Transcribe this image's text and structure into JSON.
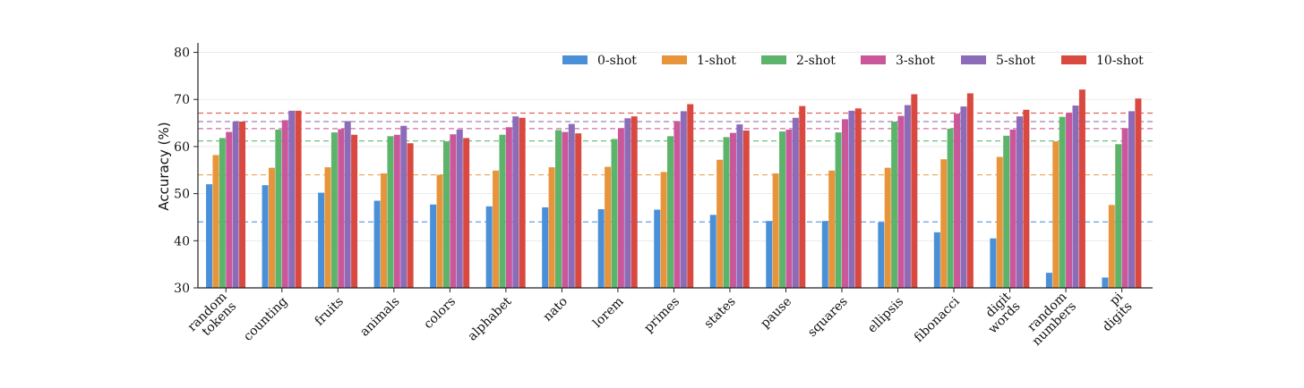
{
  "chart_data": {
    "type": "bar",
    "title": "",
    "xlabel": "",
    "ylabel": "Accuracy (%)",
    "ylim": [
      30,
      82
    ],
    "yticks": [
      30,
      40,
      50,
      60,
      70,
      80
    ],
    "grid": true,
    "legend_position": "top-right",
    "categories": [
      [
        "random",
        "tokens"
      ],
      [
        "counting"
      ],
      [
        "fruits"
      ],
      [
        "animals"
      ],
      [
        "colors"
      ],
      [
        "alphabet"
      ],
      [
        "nato"
      ],
      [
        "lorem"
      ],
      [
        "primes"
      ],
      [
        "states"
      ],
      [
        "pause"
      ],
      [
        "squares"
      ],
      [
        "ellipsis"
      ],
      [
        "fibonacci"
      ],
      [
        "digit",
        "words"
      ],
      [
        "random",
        "numbers"
      ],
      [
        "pi",
        "digits"
      ]
    ],
    "series": [
      {
        "name": "0-shot",
        "color": "#4a90d9",
        "values": [
          52.0,
          51.8,
          50.2,
          48.5,
          47.7,
          47.3,
          47.1,
          46.7,
          46.6,
          45.5,
          44.2,
          44.2,
          43.9,
          41.8,
          40.5,
          33.2,
          32.2
        ],
        "reference": 44.0
      },
      {
        "name": "1-shot",
        "color": "#e8943a",
        "values": [
          58.2,
          55.5,
          55.6,
          54.3,
          54.0,
          54.9,
          55.6,
          55.7,
          54.6,
          57.2,
          54.3,
          54.9,
          55.5,
          57.3,
          57.8,
          61.1,
          47.6
        ],
        "reference": 54.0
      },
      {
        "name": "2-shot",
        "color": "#5cb36a",
        "values": [
          61.8,
          63.6,
          63.0,
          62.2,
          61.1,
          62.5,
          63.5,
          61.6,
          62.2,
          62.0,
          63.2,
          63.0,
          65.3,
          63.8,
          62.3,
          66.3,
          60.5
        ],
        "reference": 61.2
      },
      {
        "name": "3-shot",
        "color": "#c9579a",
        "values": [
          63.1,
          65.6,
          63.7,
          62.5,
          62.6,
          64.1,
          63.1,
          63.9,
          65.4,
          62.9,
          63.6,
          65.8,
          66.5,
          67.0,
          63.6,
          67.1,
          63.9
        ],
        "reference": 63.8
      },
      {
        "name": "5-shot",
        "color": "#8c6bb8",
        "values": [
          65.3,
          67.6,
          65.4,
          64.4,
          63.6,
          66.4,
          64.8,
          66.0,
          67.5,
          64.7,
          66.1,
          67.6,
          68.8,
          68.5,
          66.4,
          68.7,
          67.5
        ],
        "reference": 65.3
      },
      {
        "name": "10-shot",
        "color": "#d9493f",
        "values": [
          65.3,
          67.6,
          62.5,
          60.7,
          61.8,
          66.1,
          62.8,
          66.4,
          69.0,
          63.4,
          68.6,
          68.1,
          71.1,
          71.3,
          67.8,
          72.1,
          70.2
        ],
        "reference": 67.1
      }
    ]
  }
}
